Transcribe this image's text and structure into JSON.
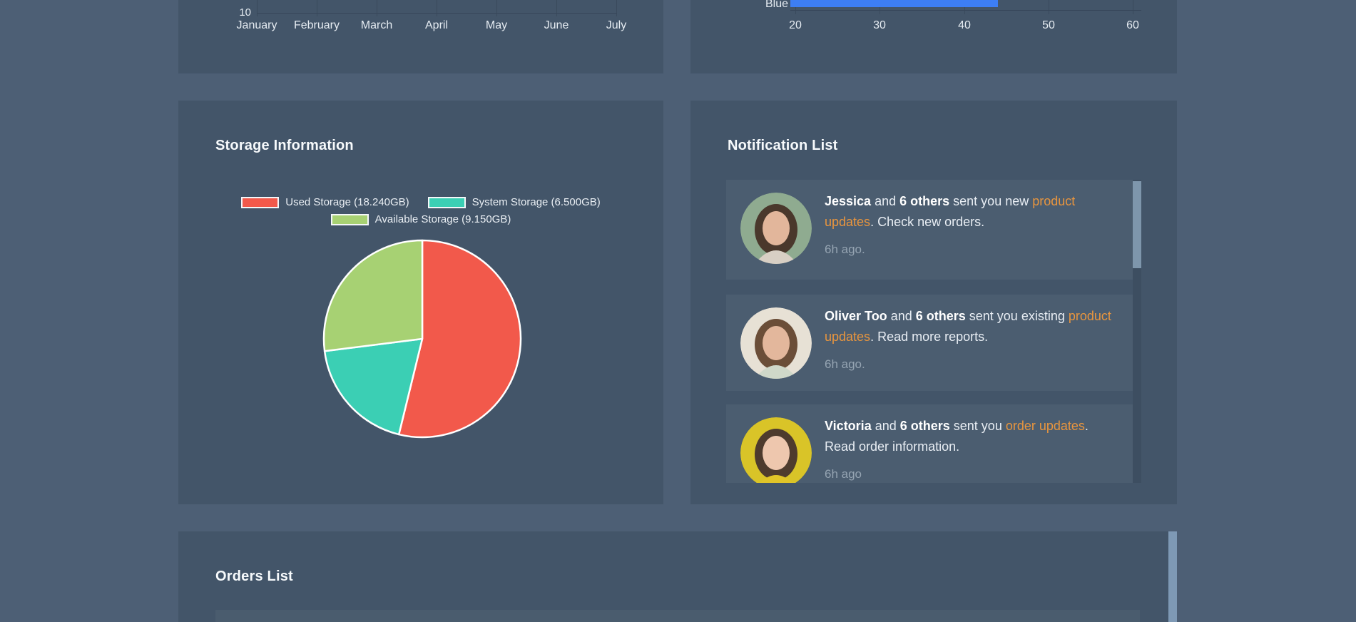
{
  "theme": {
    "page_bg": "#4d5f75",
    "panel_bg": "#435569",
    "card_bg": "#4b5d70",
    "grid_color": "#3a4a5c",
    "tick_text": "#e6ecf2",
    "link_orange": "#e8953e",
    "muted_text": "#95a4b2",
    "scroll_thumb": "#7e96ac",
    "scroll_track": "#3d4e61"
  },
  "storage": {
    "title": "Storage Information"
  },
  "notifications": {
    "title": "Notification List",
    "items": [
      {
        "avatar": {
          "name": "jessica-avatar",
          "bg": "#8fab90",
          "hair": "#4a382c",
          "skin": "#e2b69b",
          "shirt": "#d8cfc4"
        },
        "lines": [
          [
            {
              "t": "Jessica",
              "s": "bold"
            },
            {
              "t": " and ",
              "s": "normal"
            },
            {
              "t": "6 others",
              "s": "bold"
            },
            {
              "t": " sent you new ",
              "s": "normal"
            },
            {
              "t": "product",
              "s": "link"
            }
          ],
          [
            {
              "t": "updates",
              "s": "link"
            },
            {
              "t": ". Check new orders.",
              "s": "normal"
            }
          ]
        ],
        "time": "6h ago."
      },
      {
        "avatar": {
          "name": "oliver-avatar",
          "bg": "#e7e1d5",
          "hair": "#6b4e38",
          "skin": "#e3b79c",
          "shirt": "#cfd8c9"
        },
        "lines": [
          [
            {
              "t": "Oliver Too",
              "s": "bold"
            },
            {
              "t": " and ",
              "s": "normal"
            },
            {
              "t": "6 others",
              "s": "bold"
            },
            {
              "t": " sent you existing ",
              "s": "normal"
            },
            {
              "t": "product",
              "s": "link"
            }
          ],
          [
            {
              "t": "updates",
              "s": "link"
            },
            {
              "t": ". Read more reports.",
              "s": "normal"
            }
          ]
        ],
        "time": "6h ago."
      },
      {
        "avatar": {
          "name": "victoria-avatar",
          "bg": "#d9c428",
          "hair": "#4e3b2d",
          "skin": "#eec7ae",
          "shirt": "#e0c428"
        },
        "lines": [
          [
            {
              "t": "Victoria",
              "s": "bold"
            },
            {
              "t": " and ",
              "s": "normal"
            },
            {
              "t": "6 others",
              "s": "bold"
            },
            {
              "t": " sent you ",
              "s": "normal"
            },
            {
              "t": "order updates",
              "s": "link"
            },
            {
              "t": ".",
              "s": "normal"
            }
          ],
          [
            {
              "t": "Read order information.",
              "s": "normal"
            }
          ]
        ],
        "time": "6h ago"
      }
    ]
  },
  "orders": {
    "title": "Orders List"
  },
  "chart_data": [
    {
      "id": "monthly-line-chart",
      "type": "line",
      "categories": [
        "January",
        "February",
        "March",
        "April",
        "May",
        "June",
        "July"
      ],
      "visible_y_tick": "10",
      "note": "chart clipped at viewport top; only x-axis, gridlines and bottom y tick visible",
      "grid": true
    },
    {
      "id": "blue-horizontal-bar-chart",
      "type": "bar",
      "orientation": "horizontal",
      "categories": [
        "Blue"
      ],
      "values": [
        44
      ],
      "x_ticks": [
        20,
        30,
        40,
        50,
        60
      ],
      "xlim": [
        19.4,
        61
      ],
      "color": "#3d7ef4",
      "grid": true,
      "note": "chart clipped at viewport top; only the Blue bar row and x-axis visible"
    },
    {
      "id": "storage-pie-chart",
      "type": "pie",
      "title": "Storage Information",
      "labels": [
        "Used Storage (18.240GB)",
        "System Storage (6.500GB)",
        "Available Storage (9.150GB)"
      ],
      "values": [
        18.24,
        6.5,
        9.15
      ],
      "colors": [
        "#f2594b",
        "#3bcfb4",
        "#a7d173"
      ],
      "border_color": "#ffffff",
      "legend_position": "top",
      "start_angle_deg": 0,
      "direction": "clockwise"
    }
  ]
}
